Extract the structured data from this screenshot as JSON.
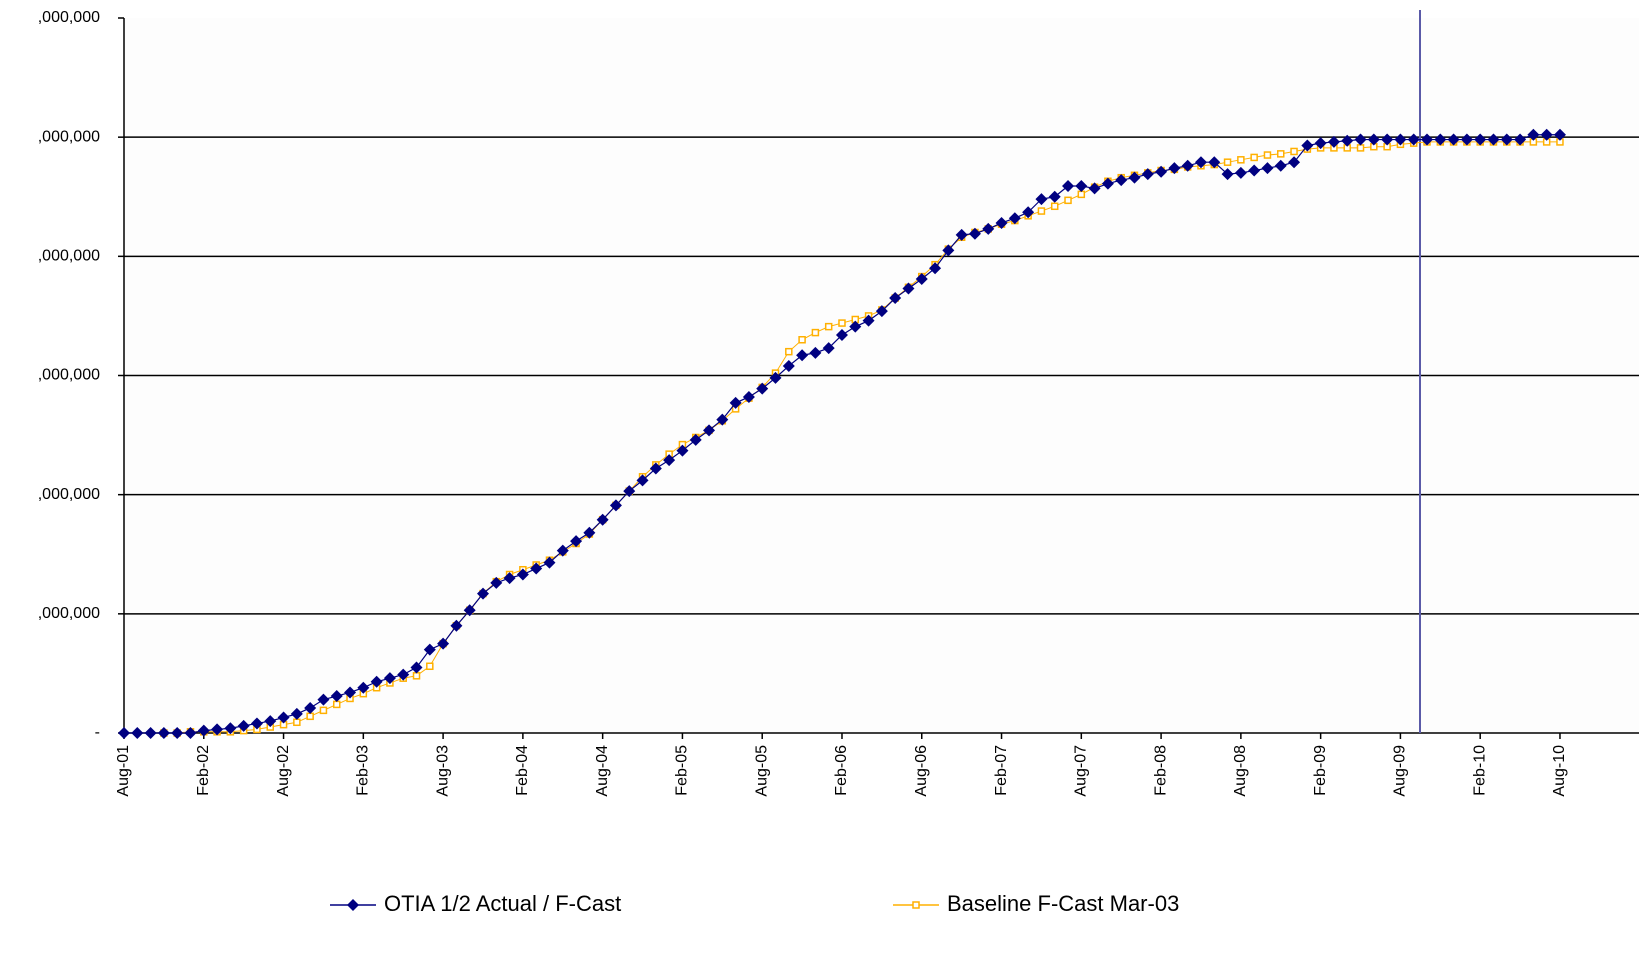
{
  "chart_data": {
    "type": "line",
    "categories": [
      "Aug-01",
      null,
      null,
      null,
      null,
      null,
      "Feb-02",
      null,
      null,
      null,
      null,
      null,
      "Aug-02",
      null,
      null,
      null,
      null,
      null,
      "Feb-03",
      null,
      null,
      null,
      null,
      null,
      "Aug-03",
      null,
      null,
      null,
      null,
      null,
      "Feb-04",
      null,
      null,
      null,
      null,
      null,
      "Aug-04",
      null,
      null,
      null,
      null,
      null,
      "Feb-05",
      null,
      null,
      null,
      null,
      null,
      "Aug-05",
      null,
      null,
      null,
      null,
      null,
      "Feb-06",
      null,
      null,
      null,
      null,
      null,
      "Aug-06",
      null,
      null,
      null,
      null,
      null,
      "Feb-07",
      null,
      null,
      null,
      null,
      null,
      "Aug-07",
      null,
      null,
      null,
      null,
      null,
      "Feb-08",
      null,
      null,
      null,
      null,
      null,
      "Aug-08",
      null,
      null,
      null,
      null,
      null,
      "Feb-09",
      null,
      null,
      null,
      null,
      null,
      "Aug-09",
      null,
      null,
      null,
      null,
      null,
      "Feb-10",
      null,
      null,
      null,
      null,
      null,
      "Aug-10"
    ],
    "series": [
      {
        "name": "OTIA 1/2 Actual / F-Cast",
        "color": "#000080",
        "marker": "diamond",
        "values": [
          0,
          0,
          0,
          0,
          0,
          0,
          20000,
          30000,
          40000,
          60000,
          80000,
          100000,
          130000,
          160000,
          210000,
          280000,
          310000,
          340000,
          380000,
          430000,
          460000,
          490000,
          550000,
          700000,
          750000,
          900000,
          1030000,
          1170000,
          1260000,
          1300000,
          1330000,
          1380000,
          1430000,
          1530000,
          1610000,
          1680000,
          1790000,
          1910000,
          2030000,
          2120000,
          2220000,
          2290000,
          2370000,
          2460000,
          2540000,
          2630000,
          2770000,
          2820000,
          2890000,
          2980000,
          3080000,
          3170000,
          3190000,
          3230000,
          3340000,
          3410000,
          3460000,
          3540000,
          3650000,
          3730000,
          3810000,
          3900000,
          4050000,
          4180000,
          4190000,
          4230000,
          4280000,
          4320000,
          4370000,
          4480000,
          4500000,
          4590000,
          4590000,
          4570000,
          4610000,
          4640000,
          4660000,
          4690000,
          4710000,
          4740000,
          4760000,
          4790000,
          4790000,
          4690000,
          4700000,
          4720000,
          4740000,
          4760000,
          4790000,
          4930000,
          4950000,
          4960000,
          4970000,
          4980000,
          4980000,
          4980000,
          4980000,
          4980000,
          4980000,
          4980000,
          4980000,
          4980000,
          4980000,
          4980000,
          4980000,
          4980000,
          5020000,
          5020000,
          5020000
        ]
      },
      {
        "name": "Baseline F-Cast Mar-03",
        "color": "#FFB000",
        "marker": "square",
        "values": [
          null,
          null,
          null,
          0,
          0,
          10000,
          10000,
          10000,
          10000,
          20000,
          30000,
          50000,
          70000,
          90000,
          140000,
          190000,
          240000,
          290000,
          330000,
          380000,
          420000,
          460000,
          480000,
          560000,
          750000,
          900000,
          1030000,
          1170000,
          1270000,
          1330000,
          1370000,
          1410000,
          1450000,
          1520000,
          1590000,
          1670000,
          1790000,
          1910000,
          2030000,
          2150000,
          2250000,
          2340000,
          2420000,
          2480000,
          2540000,
          2620000,
          2720000,
          2810000,
          2900000,
          3020000,
          3200000,
          3300000,
          3360000,
          3410000,
          3440000,
          3470000,
          3500000,
          3550000,
          3650000,
          3740000,
          3830000,
          3930000,
          4060000,
          4160000,
          4200000,
          4230000,
          4270000,
          4300000,
          4340000,
          4380000,
          4420000,
          4470000,
          4520000,
          4580000,
          4630000,
          4660000,
          4680000,
          4700000,
          4720000,
          4730000,
          4750000,
          4760000,
          4770000,
          4790000,
          4810000,
          4830000,
          4850000,
          4860000,
          4880000,
          4900000,
          4910000,
          4910000,
          4910000,
          4910000,
          4920000,
          4920000,
          4940000,
          4950000,
          4960000,
          4960000,
          4960000,
          4960000,
          4960000,
          4960000,
          4960000,
          4960000,
          4960000,
          4960000,
          4960000
        ]
      }
    ],
    "ylim": [
      0,
      6000000
    ],
    "yticks": [
      {
        "value": 0,
        "label": "-"
      },
      {
        "value": 1000000,
        "label": ",000,000"
      },
      {
        "value": 2000000,
        "label": ",000,000"
      },
      {
        "value": 3000000,
        "label": ",000,000"
      },
      {
        "value": 4000000,
        "label": ",000,000"
      },
      {
        "value": 5000000,
        "label": ",000,000"
      },
      {
        "value": 6000000,
        "label": ",000,000"
      }
    ],
    "grid": true
  }
}
